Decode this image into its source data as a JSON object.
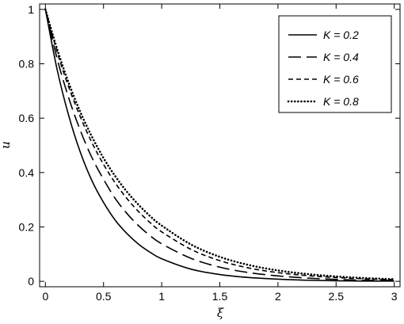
{
  "chart_data": {
    "type": "line",
    "title": "",
    "xlabel": "ξ",
    "ylabel": "u",
    "xlim": [
      -0.05,
      3.05
    ],
    "ylim": [
      -0.02,
      1.02
    ],
    "x_ticks": [
      0,
      0.5,
      1,
      1.5,
      2,
      2.5,
      3
    ],
    "x_tick_labels": [
      "0",
      "0.5",
      "1",
      "1.5",
      "2",
      "2.5",
      "3"
    ],
    "y_ticks": [
      0,
      0.2,
      0.4,
      0.6,
      0.8,
      1
    ],
    "y_tick_labels": [
      "0",
      "0.2",
      "0.4",
      "0.6",
      "0.8",
      "1"
    ],
    "grid": false,
    "legend_position": "top-right",
    "x": [
      0,
      0.1,
      0.2,
      0.3,
      0.4,
      0.5,
      0.6,
      0.7,
      0.8,
      0.9,
      1.0,
      1.25,
      1.5,
      1.75,
      2.0,
      2.25,
      2.5,
      2.75,
      3.0
    ],
    "series": [
      {
        "name": "K = 0.2",
        "style": "solid",
        "values": [
          1.0,
          0.78,
          0.61,
          0.475,
          0.37,
          0.29,
          0.225,
          0.176,
          0.137,
          0.107,
          0.083,
          0.045,
          0.025,
          0.014,
          0.008,
          0.004,
          0.002,
          0.001,
          0.001
        ]
      },
      {
        "name": "K = 0.4",
        "style": "long-dash",
        "values": [
          1.0,
          0.82,
          0.675,
          0.555,
          0.455,
          0.375,
          0.305,
          0.25,
          0.205,
          0.168,
          0.138,
          0.085,
          0.052,
          0.032,
          0.02,
          0.012,
          0.007,
          0.004,
          0.003
        ]
      },
      {
        "name": "K = 0.6",
        "style": "short-dash",
        "values": [
          1.0,
          0.845,
          0.715,
          0.605,
          0.51,
          0.43,
          0.362,
          0.305,
          0.257,
          0.216,
          0.182,
          0.118,
          0.076,
          0.049,
          0.032,
          0.021,
          0.014,
          0.009,
          0.006
        ]
      },
      {
        "name": "K = 0.8",
        "style": "dotted",
        "values": [
          1.0,
          0.855,
          0.73,
          0.623,
          0.532,
          0.453,
          0.387,
          0.33,
          0.282,
          0.24,
          0.205,
          0.136,
          0.09,
          0.06,
          0.04,
          0.027,
          0.018,
          0.012,
          0.008
        ]
      }
    ]
  }
}
